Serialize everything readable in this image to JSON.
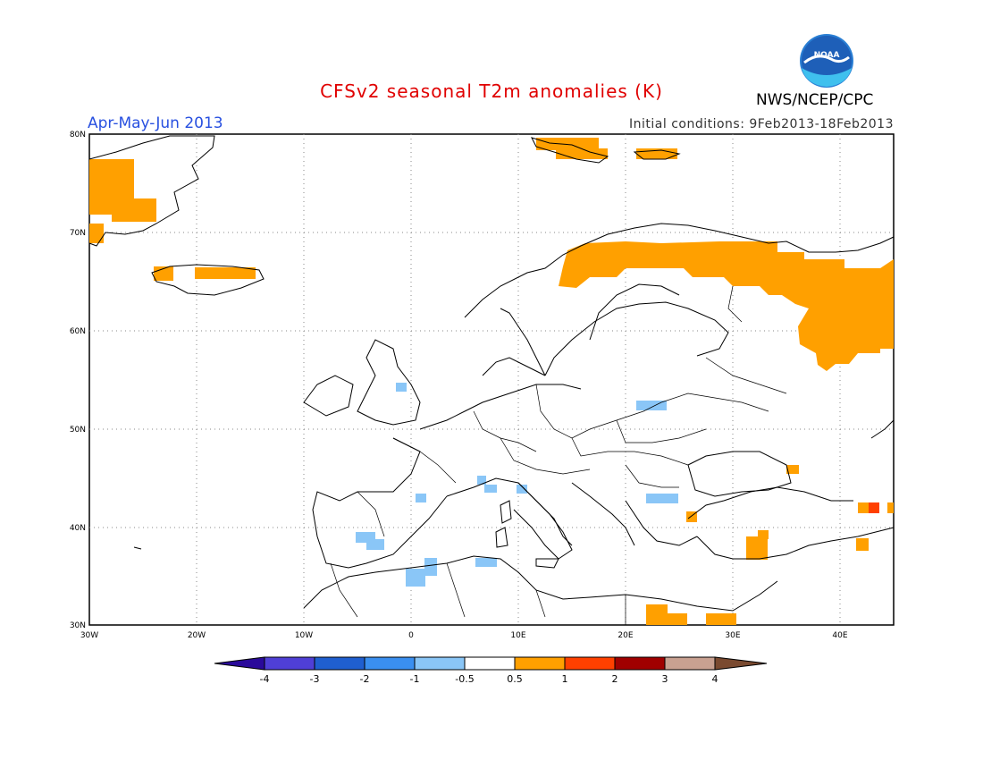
{
  "header": {
    "title": "CFSv2 seasonal T2m anomalies (K)",
    "season": "Apr-May-Jun 2013",
    "initial_conditions": "Initial conditions: 9Feb2013-18Feb2013",
    "agency": "NWS/NCEP/CPC",
    "logo_text": "NOAA"
  },
  "axes": {
    "lon_ticks": [
      "30W",
      "20W",
      "10W",
      "0",
      "10E",
      "20E",
      "30E",
      "40E"
    ],
    "lat_ticks": [
      "80N",
      "70N",
      "60N",
      "50N",
      "40N",
      "30N"
    ]
  },
  "colorbar": {
    "labels": [
      "-4",
      "-3",
      "-2",
      "-1",
      "-0.5",
      "0.5",
      "1",
      "2",
      "3",
      "4"
    ],
    "colors": [
      "#2a0a9a",
      "#4f3fd6",
      "#1f5fd0",
      "#3a8ff0",
      "#8ac6f7",
      "#ffffff",
      "#ffa000",
      "#ff4000",
      "#a00000",
      "#c9a191",
      "#7a4a30"
    ]
  },
  "colors": {
    "warm": "#ffa000",
    "warm2": "#ff4000",
    "cool": "#8ac6f7"
  }
}
